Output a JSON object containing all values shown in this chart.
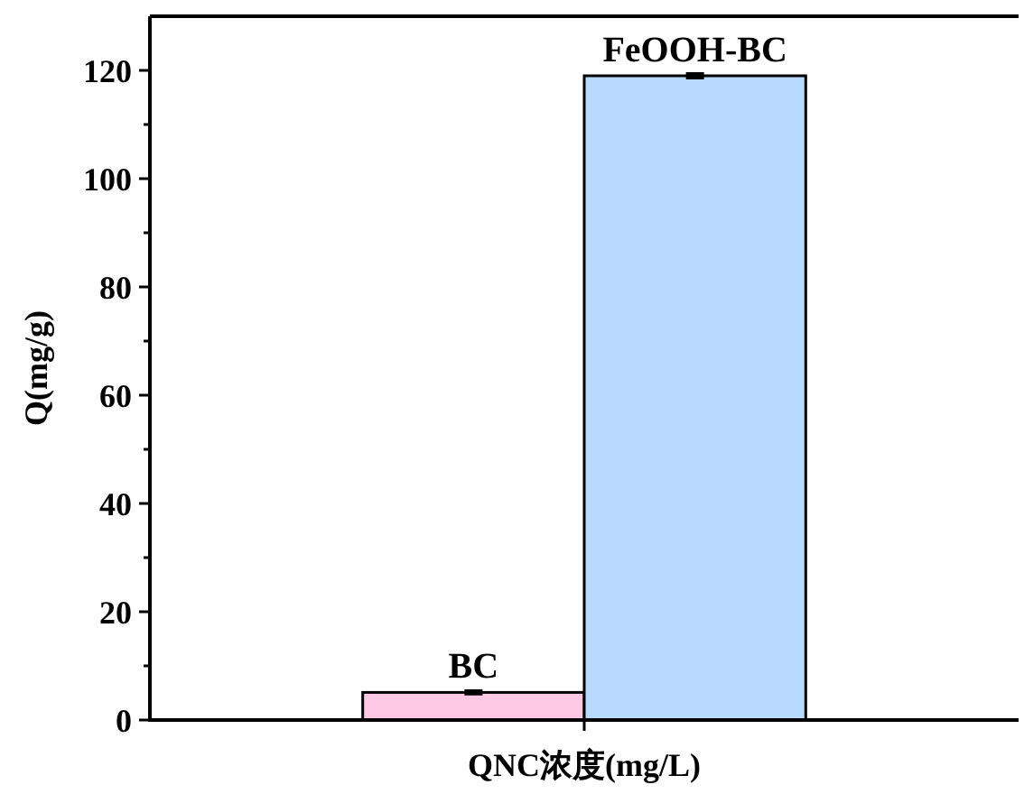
{
  "chart_data": {
    "type": "bar",
    "ylabel": "Q(mg/g)",
    "categories": [
      "QNC浓度(mg/L)"
    ],
    "series": [
      {
        "name": "BC",
        "color": "#ffc8e4",
        "values": [
          5.1
        ],
        "errors": [
          0.3
        ]
      },
      {
        "name": "FeOOH-BC",
        "color": "#b8dafe",
        "values": [
          119
        ],
        "errors": [
          0.4
        ]
      }
    ],
    "ylim": [
      0,
      130
    ],
    "yticks": [
      0,
      20,
      40,
      60,
      80,
      100,
      120
    ]
  }
}
